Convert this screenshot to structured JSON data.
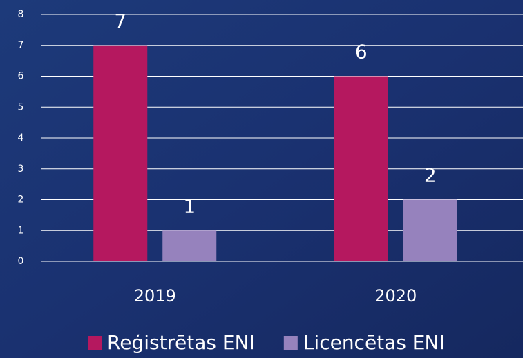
{
  "chart_data": {
    "type": "bar",
    "categories": [
      "2019",
      "2020"
    ],
    "series": [
      {
        "name": "Reģistrētas ENI",
        "color": "#b5185f",
        "values": [
          7,
          6
        ]
      },
      {
        "name": "Licencētas ENI",
        "color": "#9682bd",
        "values": [
          1,
          2
        ]
      }
    ],
    "ylim": [
      0,
      8
    ],
    "yticks": [
      0,
      1,
      2,
      3,
      4,
      5,
      6,
      7,
      8
    ],
    "grid": true,
    "legend": "bottom"
  }
}
